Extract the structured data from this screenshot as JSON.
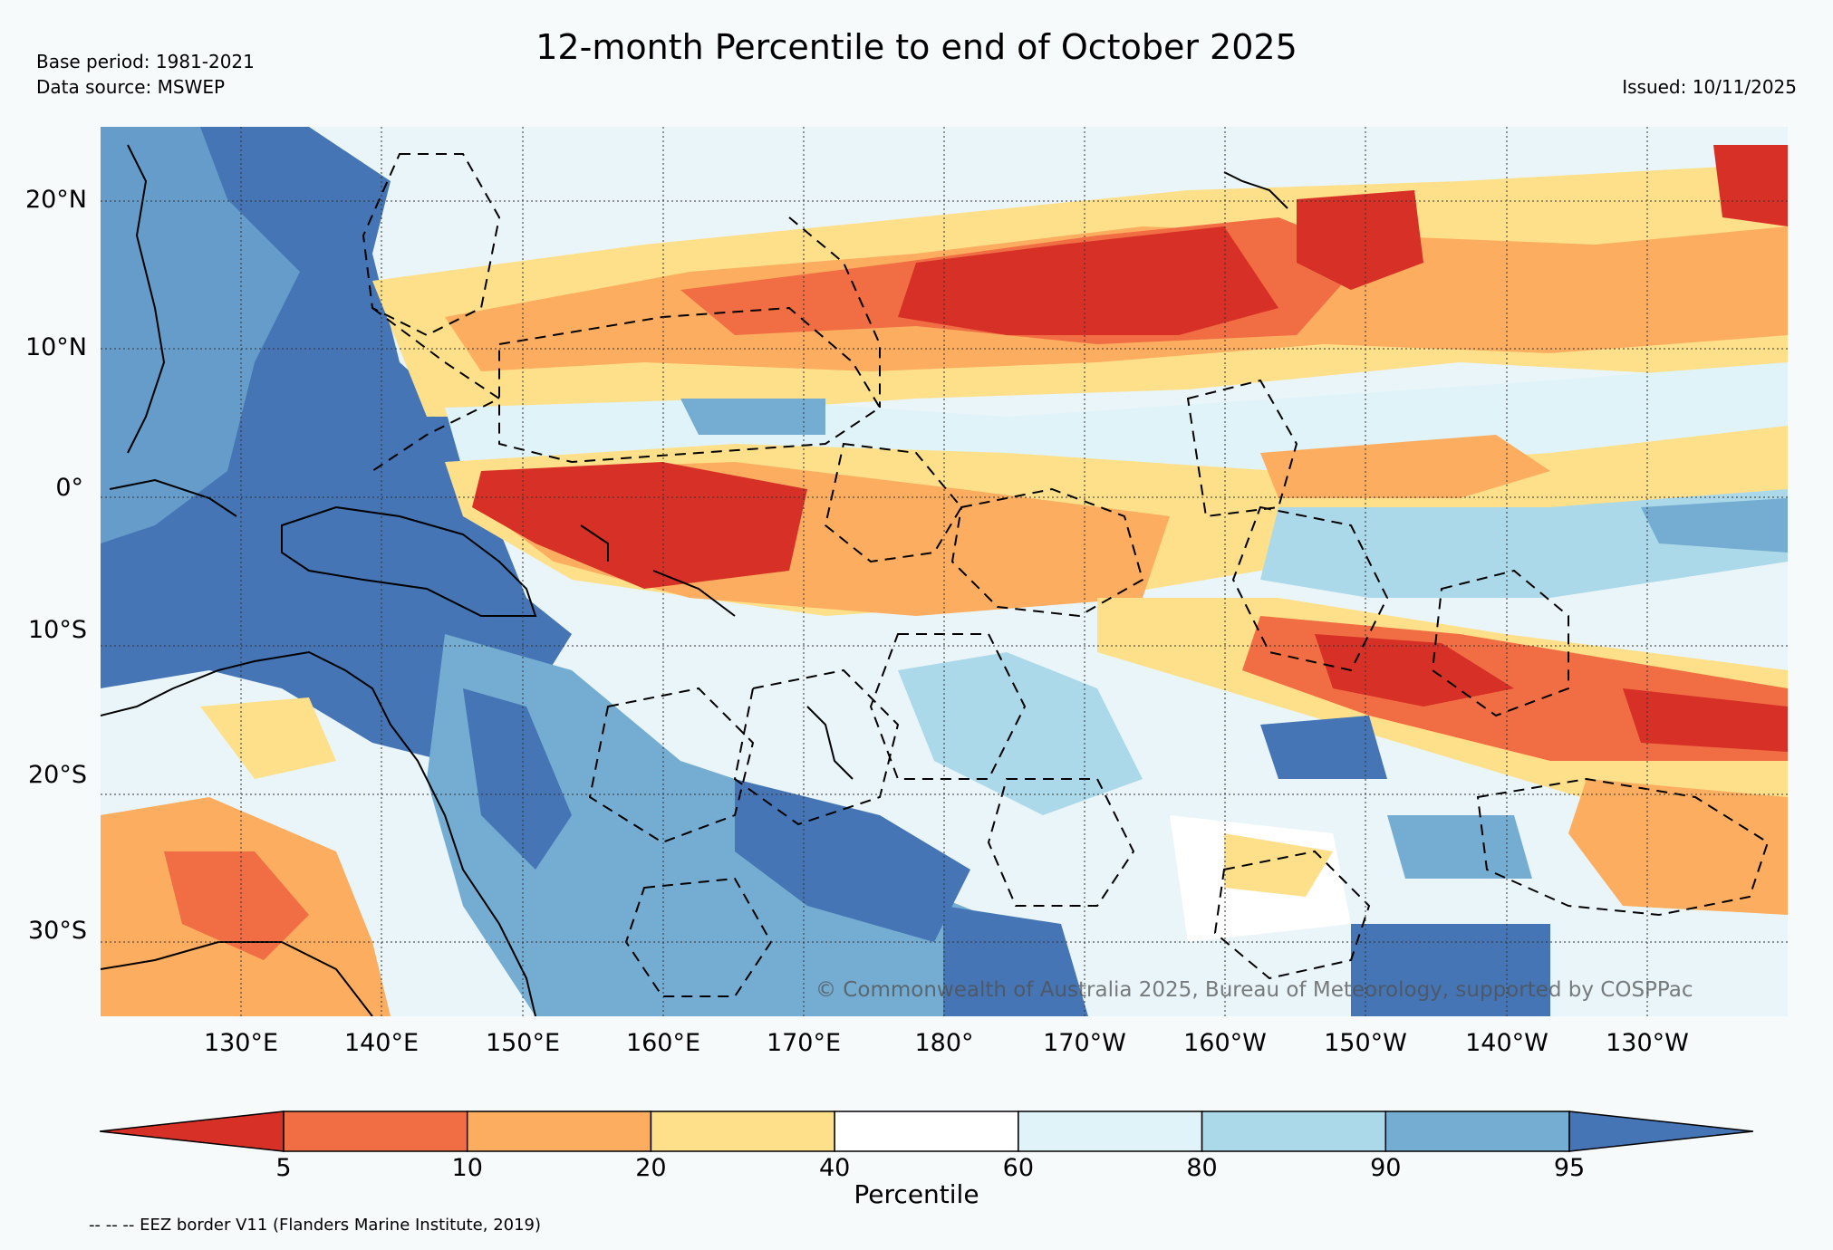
{
  "header": {
    "title": "12-month Percentile to end of October 2025",
    "base_period": "Base period: 1981-2021",
    "data_source": "Data source: MSWEP",
    "issued": "Issued: 10/11/2025"
  },
  "map": {
    "lat_labels": [
      "20°N",
      "10°N",
      "0°",
      "10°S",
      "20°S",
      "30°S"
    ],
    "lon_labels": [
      "130°E",
      "140°E",
      "150°E",
      "160°E",
      "170°E",
      "180°",
      "170°W",
      "160°W",
      "150°W",
      "140°W",
      "130°W"
    ],
    "copyright": "© Commonwealth of Australia 2025, Bureau of Meteorology, supported by COSPPac",
    "region_extent": {
      "lon_min": 120,
      "lon_max": 240,
      "lat_min": -35,
      "lat_max": 25
    }
  },
  "legend": {
    "label": "Percentile",
    "ticks": [
      "5",
      "10",
      "20",
      "40",
      "60",
      "80",
      "90",
      "95"
    ],
    "bin_colors": [
      "#d73027",
      "#f16d43",
      "#fcad60",
      "#fee08b",
      "#ffffff",
      "#e0f3f8",
      "#abd9e9",
      "#74add1",
      "#4575b4"
    ],
    "footnote": "-- -- -- EEZ border V11 (Flanders Marine Institute, 2019)"
  },
  "colors": {
    "very_much_below": "#d73027",
    "below": "#fdae61",
    "average": "#ffffff",
    "above": "#abd9e9",
    "very_much_above": "#4575b4"
  }
}
